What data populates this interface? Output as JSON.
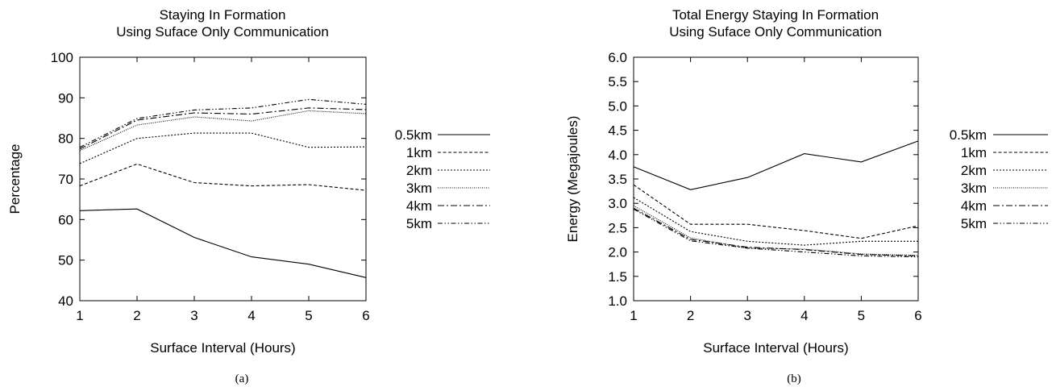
{
  "figure": {
    "panels": [
      {
        "caption": "(a)"
      },
      {
        "caption": "(b)"
      }
    ]
  },
  "chart_data": [
    {
      "type": "line",
      "title": "Staying In Formation\nUsing Suface Only Communication",
      "xlabel": "Surface Interval (Hours)",
      "ylabel": "Percentage",
      "xlim": [
        1,
        6
      ],
      "ylim": [
        40,
        100
      ],
      "xticks": [
        1,
        2,
        3,
        4,
        5,
        6
      ],
      "yticks": [
        40,
        50,
        60,
        70,
        80,
        90,
        100
      ],
      "ytick_decimals": 0,
      "grid": false,
      "legend_position": "outside-right",
      "x": [
        1,
        2,
        3,
        4,
        5,
        6
      ],
      "series": [
        {
          "name": "0.5km",
          "dash": "solid",
          "values": [
            62.2,
            62.6,
            55.6,
            50.8,
            49.0,
            45.7
          ]
        },
        {
          "name": "1km",
          "dash": "dashed",
          "values": [
            68.3,
            73.7,
            69.1,
            68.3,
            68.6,
            67.2
          ]
        },
        {
          "name": "2km",
          "dash": "dotted",
          "values": [
            73.8,
            80.0,
            81.3,
            81.3,
            77.8,
            77.9
          ]
        },
        {
          "name": "3km",
          "dash": "fine-dotted",
          "values": [
            77.0,
            83.3,
            85.3,
            84.3,
            86.8,
            86.1
          ]
        },
        {
          "name": "4km",
          "dash": "dash-dot",
          "values": [
            77.4,
            84.5,
            86.3,
            86.0,
            87.5,
            87.1
          ]
        },
        {
          "name": "5km",
          "dash": "dash-dot-dot",
          "values": [
            77.8,
            84.9,
            87.0,
            87.5,
            89.6,
            88.4
          ]
        }
      ]
    },
    {
      "type": "line",
      "title": "Total Energy Staying In Formation\nUsing Suface Only Communication",
      "xlabel": "Surface Interval (Hours)",
      "ylabel": "Energy (Megajoules)",
      "xlim": [
        1,
        6
      ],
      "ylim": [
        1.0,
        6.0
      ],
      "xticks": [
        1,
        2,
        3,
        4,
        5,
        6
      ],
      "yticks": [
        1.0,
        1.5,
        2.0,
        2.5,
        3.0,
        3.5,
        4.0,
        4.5,
        5.0,
        5.5,
        6.0
      ],
      "ytick_decimals": 1,
      "grid": false,
      "legend_position": "outside-right",
      "x": [
        1,
        2,
        3,
        4,
        5,
        6
      ],
      "series": [
        {
          "name": "0.5km",
          "dash": "solid",
          "values": [
            3.75,
            3.28,
            3.53,
            4.02,
            3.85,
            4.28
          ]
        },
        {
          "name": "1km",
          "dash": "dashed",
          "values": [
            3.38,
            2.57,
            2.57,
            2.44,
            2.28,
            2.54
          ]
        },
        {
          "name": "2km",
          "dash": "dotted",
          "values": [
            3.12,
            2.42,
            2.22,
            2.14,
            2.22,
            2.22
          ]
        },
        {
          "name": "3km",
          "dash": "fine-dotted",
          "values": [
            2.95,
            2.29,
            2.08,
            2.06,
            1.96,
            1.93
          ]
        },
        {
          "name": "4km",
          "dash": "dash-dot",
          "values": [
            2.9,
            2.26,
            2.1,
            2.05,
            1.95,
            1.92
          ]
        },
        {
          "name": "5km",
          "dash": "dash-dot-dot",
          "values": [
            2.88,
            2.23,
            2.08,
            2.0,
            1.92,
            1.9
          ]
        }
      ]
    }
  ]
}
